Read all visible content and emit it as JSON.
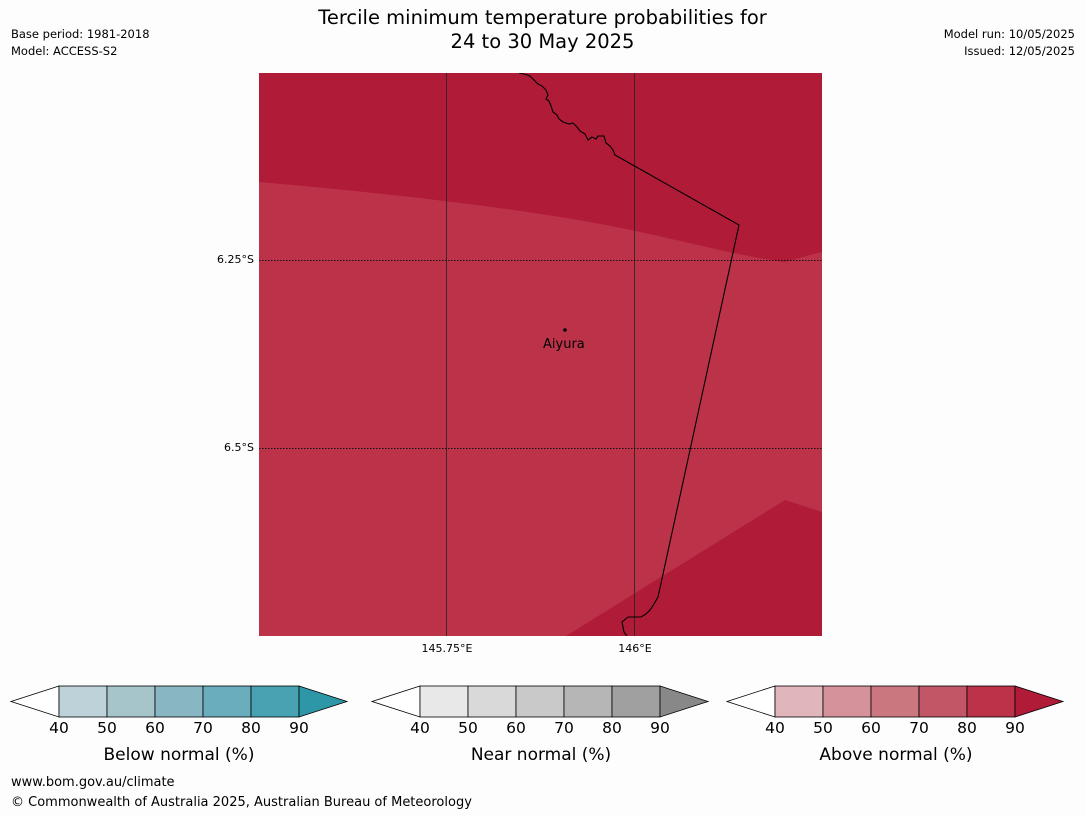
{
  "title_line1": "Tercile minimum temperature probabilities for",
  "title_line2": "24 to 30 May 2025",
  "meta_left": {
    "base_period": "Base period: 1981-2018",
    "model": "Model: ACCESS-S2"
  },
  "meta_right": {
    "model_run": "Model run: 10/05/2025",
    "issued": "Issued: 12/05/2025"
  },
  "map": {
    "lat_labels": [
      "6.25°S",
      "6.5°S"
    ],
    "lon_labels": [
      "145.75°E",
      "146°E"
    ],
    "place": "Aiyura",
    "colors": {
      "dark": "#b01b38",
      "medium": "#bc3349"
    }
  },
  "colorbars": [
    {
      "title": "Below normal (%)",
      "ticks": [
        "40",
        "50",
        "60",
        "70",
        "80",
        "90"
      ],
      "colors": [
        "#ffffff",
        "#bdd3d9",
        "#a6c5cb",
        "#88b6c2",
        "#6aaebd",
        "#48a2b1",
        "#2d97a8"
      ]
    },
    {
      "title": "Near normal (%)",
      "ticks": [
        "40",
        "50",
        "60",
        "70",
        "80",
        "90"
      ],
      "colors": [
        "#ffffff",
        "#e8e8e8",
        "#d9d9d9",
        "#c9c9c9",
        "#b6b6b6",
        "#a0a0a0",
        "#888888"
      ]
    },
    {
      "title": "Above normal (%)",
      "ticks": [
        "40",
        "50",
        "60",
        "70",
        "80",
        "90"
      ],
      "colors": [
        "#ffffff",
        "#e0b6bc",
        "#d6929b",
        "#ca7780",
        "#c25666",
        "#bc3349",
        "#b01b38"
      ]
    }
  ],
  "footer": {
    "url": "www.bom.gov.au/climate",
    "copyright": "© Commonwealth of Australia 2025, Australian Bureau of Meteorology"
  }
}
